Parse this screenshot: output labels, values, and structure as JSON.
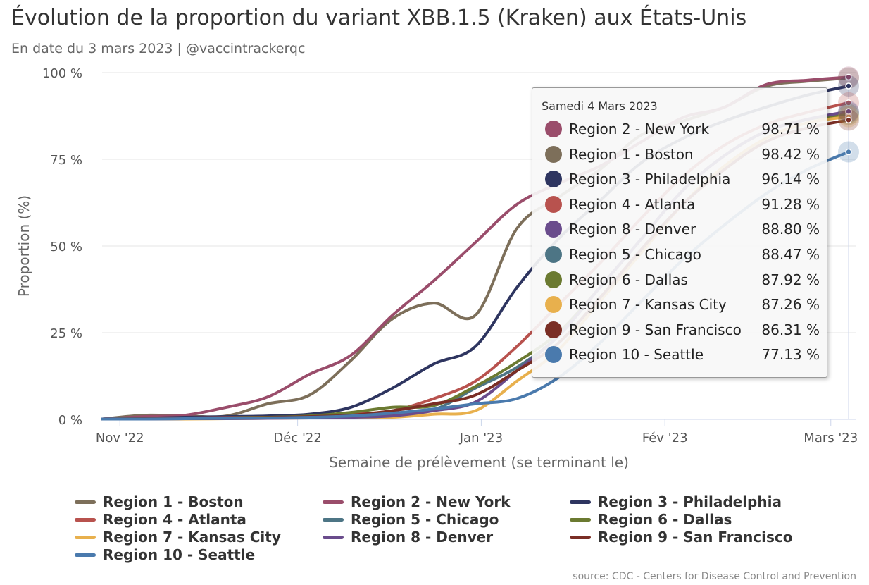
{
  "header": {
    "title": "Évolution de la proportion du variant XBB.1.5 (Kraken) aux États-Unis",
    "subtitle": "En date du 3 mars 2023 | @vaccintrackerqc"
  },
  "source": "source: CDC - Centers for Disease Control and Prevention",
  "tooltip": {
    "date": "Samedi 4 Mars 2023",
    "rows": [
      {
        "name": "Region 2 - New York",
        "value": "98.71 %"
      },
      {
        "name": "Region 1 - Boston",
        "value": "98.42 %"
      },
      {
        "name": "Region 3 - Philadelphia",
        "value": "96.14 %"
      },
      {
        "name": "Region 4 - Atlanta",
        "value": "91.28 %"
      },
      {
        "name": "Region 8 - Denver",
        "value": "88.80 %"
      },
      {
        "name": "Region 5 - Chicago",
        "value": "88.47 %"
      },
      {
        "name": "Region 6 - Dallas",
        "value": "87.92 %"
      },
      {
        "name": "Region 7 - Kansas City",
        "value": "87.26 %"
      },
      {
        "name": "Region 9 - San Francisco",
        "value": "86.31 %"
      },
      {
        "name": "Region 10 - Seattle",
        "value": "77.13 %"
      }
    ]
  },
  "chart_data": {
    "type": "line",
    "ylabel": "Proportion (%)",
    "xlabel": "Semaine de prélèvement (se terminant le)",
    "ylim": [
      0,
      100
    ],
    "xlim": [
      "2022-10-29",
      "2023-03-04"
    ],
    "y_ticks": [
      0,
      25,
      50,
      75,
      100
    ],
    "y_tick_labels": [
      "0 %",
      "25 %",
      "50 %",
      "75 %",
      "100 %"
    ],
    "x_ticks": [
      "2022-11-01",
      "2022-12-01",
      "2023-01-01",
      "2023-02-01",
      "2023-03-01"
    ],
    "x_tick_labels": [
      "Nov '22",
      "Déc '22",
      "Jan '23",
      "Fév '23",
      "Mars '23"
    ],
    "grid": true,
    "legend_position": "bottom",
    "x": [
      "2022-10-29",
      "2022-11-05",
      "2022-11-12",
      "2022-11-19",
      "2022-11-26",
      "2022-12-03",
      "2022-12-10",
      "2022-12-17",
      "2022-12-24",
      "2022-12-31",
      "2023-01-07",
      "2023-01-14",
      "2023-01-21",
      "2023-01-28",
      "2023-02-04",
      "2023-02-11",
      "2023-02-18",
      "2023-02-25",
      "2023-03-04"
    ],
    "series": [
      {
        "name": "Region 1 - Boston",
        "color": "#7d6f5a",
        "values": [
          0.1,
          1.2,
          1.0,
          1.0,
          4.5,
          7.0,
          17.0,
          29.0,
          33.5,
          30.0,
          55.0,
          64.0,
          72.0,
          82.0,
          86.0,
          90.0,
          96.0,
          97.5,
          98.42
        ]
      },
      {
        "name": "Region 2 - New York",
        "color": "#9a4d6b",
        "values": [
          0.1,
          0.8,
          1.2,
          3.5,
          6.5,
          13.0,
          18.5,
          30.0,
          40.0,
          51.0,
          62.0,
          68.0,
          73.0,
          80.0,
          87.0,
          90.0,
          96.5,
          97.8,
          98.71
        ]
      },
      {
        "name": "Region 3 - Philadelphia",
        "color": "#2e3560",
        "values": [
          0.1,
          0.3,
          0.6,
          0.8,
          1.0,
          1.5,
          3.5,
          9.0,
          16.0,
          21.0,
          38.0,
          52.0,
          63.0,
          74.0,
          81.0,
          86.0,
          90.0,
          93.5,
          96.14
        ]
      },
      {
        "name": "Region 4 - Atlanta",
        "color": "#b8524e",
        "values": [
          0.1,
          0.3,
          0.4,
          0.5,
          0.6,
          0.8,
          1.5,
          2.5,
          6.0,
          11.0,
          21.0,
          33.0,
          45.0,
          58.0,
          70.0,
          79.0,
          85.0,
          88.5,
          91.28
        ]
      },
      {
        "name": "Region 5 - Chicago",
        "color": "#4d7585",
        "values": [
          0.1,
          0.2,
          0.2,
          0.3,
          0.4,
          0.6,
          0.9,
          1.5,
          2.8,
          9.0,
          15.0,
          24.0,
          38.0,
          52.0,
          66.0,
          76.0,
          83.0,
          86.5,
          88.47
        ]
      },
      {
        "name": "Region 6 - Dallas",
        "color": "#6b7a31",
        "values": [
          0.1,
          0.2,
          0.3,
          0.4,
          0.6,
          1.0,
          2.0,
          3.5,
          4.0,
          9.5,
          16.5,
          25.0,
          38.0,
          52.0,
          66.0,
          76.0,
          83.0,
          86.5,
          87.92
        ]
      },
      {
        "name": "Region 7 - Kansas City",
        "color": "#e8b04d",
        "values": [
          0.1,
          0.1,
          0.1,
          0.2,
          0.3,
          0.4,
          0.5,
          0.6,
          1.5,
          2.5,
          11.0,
          20.0,
          34.0,
          48.0,
          62.0,
          73.0,
          81.0,
          85.5,
          87.26
        ]
      },
      {
        "name": "Region 8 - Denver",
        "color": "#6a4c8c",
        "values": [
          0.1,
          0.1,
          0.2,
          0.2,
          0.3,
          0.4,
          0.6,
          1.0,
          2.5,
          5.0,
          14.0,
          24.0,
          38.0,
          52.0,
          66.0,
          76.0,
          83.0,
          86.5,
          88.8
        ]
      },
      {
        "name": "Region 9 - San Francisco",
        "color": "#7a2e25",
        "values": [
          0.1,
          0.2,
          0.2,
          0.3,
          0.5,
          0.8,
          1.2,
          2.5,
          4.5,
          7.0,
          14.0,
          22.0,
          35.0,
          49.0,
          62.0,
          72.0,
          80.0,
          84.0,
          86.31
        ]
      },
      {
        "name": "Region 10 - Seattle",
        "color": "#4a7aad",
        "values": [
          0.1,
          0.1,
          0.2,
          0.3,
          0.4,
          0.6,
          1.0,
          1.8,
          3.0,
          4.5,
          6.0,
          12.0,
          22.0,
          34.0,
          46.0,
          56.0,
          65.0,
          72.0,
          77.13
        ]
      }
    ]
  }
}
